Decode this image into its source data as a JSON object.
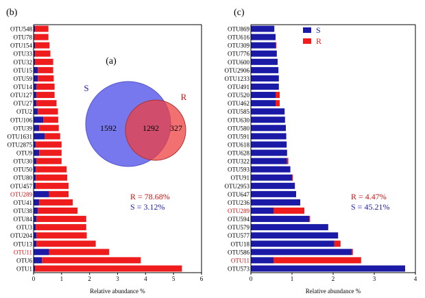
{
  "chart_data": [
    {
      "panel": "(b)",
      "type": "bar",
      "orientation": "horizontal",
      "stacked": true,
      "xlabel": "Relative abundance %",
      "xlim": [
        0,
        6
      ],
      "xticks": [
        0,
        1,
        2,
        3,
        4,
        5,
        6
      ],
      "categories": [
        "OTU548",
        "OTU78",
        "OTU154",
        "OTU33",
        "OTU32",
        "OTU15",
        "OTU59",
        "OTU14",
        "OTU127",
        "OTU27",
        "OTU2",
        "OTU106",
        "OTU39",
        "OTU1631",
        "OTU2875",
        "OTU9",
        "OTU30",
        "OTU50",
        "OTU80",
        "OTU457",
        "OTU289",
        "OTU41",
        "OTU38",
        "OTU84",
        "OTU3",
        "OTU204",
        "OTU13",
        "OTU11",
        "OTU6",
        "OTU1"
      ],
      "highlighted": [
        "OTU289",
        "OTU11"
      ],
      "series": [
        {
          "name": "S",
          "color": "#1a1aa6",
          "values": [
            0.05,
            0.03,
            0.05,
            0.05,
            0.05,
            0.15,
            0.15,
            0.1,
            0.1,
            0.1,
            0.15,
            0.35,
            0.2,
            0.4,
            0.08,
            0.2,
            0.1,
            0.08,
            0.08,
            0.08,
            0.55,
            0.2,
            0.15,
            0.1,
            0.08,
            0.1,
            0.1,
            0.55,
            0.3,
            0.05
          ]
        },
        {
          "name": "R",
          "color": "#ee1c1c",
          "values": [
            0.48,
            0.5,
            0.52,
            0.55,
            0.65,
            0.55,
            0.57,
            0.65,
            0.65,
            0.72,
            0.72,
            0.53,
            0.7,
            0.55,
            0.92,
            0.8,
            0.9,
            1.1,
            1.12,
            1.17,
            0.7,
            1.2,
            1.42,
            1.78,
            1.8,
            1.8,
            2.12,
            2.15,
            3.53,
            5.25
          ]
        }
      ],
      "annotations": [
        "R = 78.68%",
        "S = 3.12%"
      ]
    },
    {
      "panel": "(c)",
      "type": "bar",
      "orientation": "horizontal",
      "stacked": true,
      "xlabel": "Relative abundance %",
      "xlim": [
        0,
        4
      ],
      "xticks": [
        0,
        1,
        2,
        3,
        4
      ],
      "categories": [
        "OTU869",
        "OTU616",
        "OTU309",
        "OTU776",
        "OTU600",
        "OTU2906",
        "OTU1233",
        "OTU491",
        "OTU520",
        "OTU462",
        "OTU585",
        "OTU630",
        "OTU580",
        "OTU591",
        "OTU618",
        "OTU628",
        "OTU322",
        "OTU593",
        "OTU91",
        "OTU2953",
        "OTU647",
        "OTU236",
        "OTU289",
        "OTU594",
        "OTU579",
        "OTU577",
        "OTU18",
        "OTU586",
        "OTU11",
        "OTU573"
      ],
      "highlighted": [
        "OTU289",
        "OTU11"
      ],
      "series": [
        {
          "name": "S",
          "color": "#1a1aa6",
          "values": [
            0.57,
            0.6,
            0.6,
            0.63,
            0.65,
            0.67,
            0.68,
            0.68,
            0.6,
            0.6,
            0.82,
            0.83,
            0.85,
            0.86,
            0.87,
            0.88,
            0.88,
            0.96,
            1.0,
            1.07,
            1.1,
            1.2,
            0.55,
            1.42,
            1.88,
            2.12,
            2.03,
            2.45,
            0.55,
            3.75
          ]
        },
        {
          "name": "R",
          "color": "#ee1c1c",
          "values": [
            0,
            0,
            0.02,
            0,
            0,
            0,
            0,
            0,
            0.1,
            0.1,
            0,
            0,
            0,
            0,
            0,
            0,
            0.03,
            0,
            0.02,
            0,
            0,
            0,
            0.75,
            0.02,
            0,
            0,
            0.15,
            0.03,
            2.13,
            0
          ]
        }
      ],
      "legend": {
        "placement": "top-right",
        "entries": [
          "S",
          "R"
        ]
      },
      "annotations": [
        "R = 4.47%",
        "S = 45.21%"
      ]
    },
    {
      "panel": "(a)",
      "type": "venn",
      "sets": [
        {
          "name": "S",
          "only": 1592,
          "color": "#4b4be8"
        },
        {
          "name": "R",
          "only": 327,
          "color": "#e84b4b"
        }
      ],
      "intersection": 1292
    }
  ],
  "colors": {
    "S": "#1a1aa6",
    "R": "#ee1c1c",
    "highlight_label": "#cc1111"
  }
}
